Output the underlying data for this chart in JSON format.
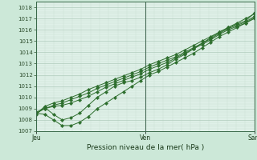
{
  "title": "Pression niveau de la mer( hPa )",
  "bg_color": "#cce8d8",
  "plot_bg_color": "#dff0e8",
  "grid_color_major": "#b0ccbc",
  "grid_color_minor": "#c8e0d0",
  "line_color": "#2d6e2d",
  "vline_color": "#4a6e5a",
  "ylim": [
    1007,
    1018.5
  ],
  "yticks": [
    1007,
    1008,
    1009,
    1010,
    1011,
    1012,
    1013,
    1014,
    1015,
    1016,
    1017,
    1018
  ],
  "xtick_labels": [
    "Jeu",
    "Ven",
    "Sam"
  ],
  "xtick_positions": [
    0.0,
    1.0,
    2.0
  ],
  "xlim": [
    0.0,
    2.0
  ],
  "series": [
    [
      1008.5,
      1009.1,
      1008.5,
      1008.0,
      1008.2,
      1008.6,
      1009.3,
      1010.0,
      1010.5,
      1011.0,
      1011.3,
      1011.5,
      1011.8,
      1012.2,
      1012.5,
      1012.9,
      1013.4,
      1013.8,
      1014.3,
      1014.8,
      1015.3,
      1015.8,
      1016.2,
      1016.6,
      1017.0,
      1017.4
    ],
    [
      1008.6,
      1008.5,
      1008.0,
      1007.5,
      1007.5,
      1007.8,
      1008.3,
      1009.0,
      1009.5,
      1010.0,
      1010.5,
      1011.0,
      1011.5,
      1012.0,
      1012.3,
      1012.7,
      1013.1,
      1013.5,
      1013.9,
      1014.4,
      1014.9,
      1015.4,
      1015.8,
      1016.2,
      1016.6,
      1017.0
    ],
    [
      1008.7,
      1009.0,
      1009.2,
      1009.3,
      1009.5,
      1009.8,
      1010.1,
      1010.5,
      1010.9,
      1011.2,
      1011.5,
      1011.8,
      1012.1,
      1012.5,
      1012.8,
      1013.1,
      1013.5,
      1013.9,
      1014.3,
      1014.7,
      1015.1,
      1015.6,
      1016.0,
      1016.3,
      1016.6,
      1017.1
    ],
    [
      1008.6,
      1009.0,
      1009.3,
      1009.5,
      1009.8,
      1010.1,
      1010.4,
      1010.8,
      1011.1,
      1011.4,
      1011.7,
      1012.0,
      1012.3,
      1012.7,
      1013.0,
      1013.3,
      1013.6,
      1014.0,
      1014.4,
      1014.8,
      1015.2,
      1015.7,
      1016.1,
      1016.4,
      1016.7,
      1017.2
    ],
    [
      1008.5,
      1009.2,
      1009.5,
      1009.7,
      1010.0,
      1010.3,
      1010.7,
      1011.0,
      1011.3,
      1011.6,
      1011.9,
      1012.2,
      1012.5,
      1012.9,
      1013.2,
      1013.5,
      1013.8,
      1014.2,
      1014.6,
      1015.0,
      1015.4,
      1015.8,
      1016.2,
      1016.5,
      1016.8,
      1017.5
    ]
  ]
}
